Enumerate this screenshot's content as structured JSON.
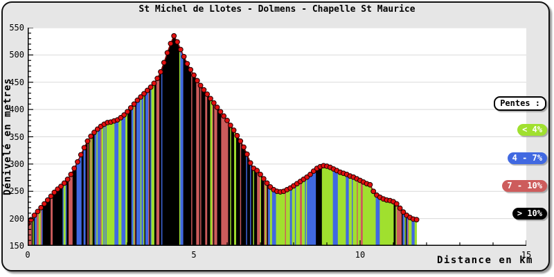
{
  "chart_data": {
    "type": "area",
    "title": "St Michel de Llotes - Dolmens - Chapelle St Maurice",
    "xlabel": "Distance en km",
    "ylabel": "Dénivelé en metres",
    "xlim": [
      0,
      15
    ],
    "ylim": [
      150,
      550
    ],
    "xticks": [
      0,
      5,
      10,
      15
    ],
    "x_minor_step": 1,
    "yticks": [
      150,
      200,
      250,
      300,
      350,
      400,
      450,
      500,
      550
    ],
    "y_minor_step": 10,
    "grid": "horizontal",
    "colors": {
      "background": "#E6E6E6",
      "plot_background": "#FFFFFF",
      "grid": "#D9D9D9",
      "axis": "#000000"
    },
    "legend": {
      "title": "Pentes :",
      "position": "right",
      "entries": [
        {
          "name": "slope-lt-4",
          "label": "< 4%",
          "color": "#A0E02F"
        },
        {
          "name": "slope-4-7",
          "label": "4 - 7%",
          "color": "#4169E1"
        },
        {
          "name": "slope-7-10",
          "label": "7 - 10%",
          "color": "#CD5C5C"
        },
        {
          "name": "slope-gt-10",
          "label": "> 10%",
          "color": "#000000"
        }
      ]
    },
    "slope_bins_pct": [
      4,
      7,
      10
    ],
    "series": [
      {
        "name": "elevation-profile",
        "marker_color": "#E31010",
        "marker_edge_color": "#1A0000",
        "line_color": "#8B0000",
        "x": [
          0.0,
          0.1,
          0.2,
          0.3,
          0.4,
          0.5,
          0.6,
          0.7,
          0.8,
          0.9,
          1.0,
          1.1,
          1.2,
          1.3,
          1.4,
          1.5,
          1.6,
          1.7,
          1.8,
          1.9,
          2.0,
          2.1,
          2.2,
          2.3,
          2.4,
          2.5,
          2.6,
          2.7,
          2.8,
          2.9,
          3.0,
          3.1,
          3.2,
          3.3,
          3.4,
          3.5,
          3.6,
          3.7,
          3.8,
          3.9,
          4.0,
          4.1,
          4.2,
          4.3,
          4.4,
          4.5,
          4.6,
          4.7,
          4.8,
          4.9,
          5.0,
          5.1,
          5.2,
          5.3,
          5.4,
          5.5,
          5.6,
          5.7,
          5.8,
          5.9,
          6.0,
          6.1,
          6.2,
          6.3,
          6.4,
          6.5,
          6.6,
          6.7,
          6.8,
          6.9,
          7.0,
          7.1,
          7.2,
          7.3,
          7.4,
          7.5,
          7.6,
          7.7,
          7.8,
          7.9,
          8.0,
          8.1,
          8.2,
          8.3,
          8.4,
          8.5,
          8.6,
          8.7,
          8.8,
          8.9,
          9.0,
          9.1,
          9.2,
          9.3,
          9.4,
          9.5,
          9.6,
          9.7,
          9.8,
          9.9,
          10.0,
          10.1,
          10.2,
          10.3,
          10.4,
          10.5,
          10.6,
          10.7,
          10.8,
          10.9,
          11.0,
          11.1,
          11.2,
          11.3,
          11.4,
          11.5,
          11.6,
          11.7
        ],
        "y": [
          191,
          198,
          206,
          213,
          220,
          227,
          234,
          241,
          248,
          254,
          259,
          265,
          272,
          281,
          292,
          304,
          317,
          330,
          342,
          351,
          358,
          364,
          369,
          373,
          376,
          377,
          379,
          381,
          385,
          390,
          396,
          403,
          410,
          417,
          423,
          429,
          435,
          441,
          448,
          457,
          469,
          486,
          504,
          521,
          535,
          524,
          510,
          497,
          484,
          473,
          463,
          453,
          444,
          436,
          428,
          420,
          412,
          404,
          396,
          388,
          380,
          371,
          362,
          352,
          342,
          331,
          318,
          302,
          292,
          288,
          281,
          273,
          265,
          258,
          253,
          250,
          249,
          250,
          253,
          256,
          260,
          264,
          268,
          272,
          276,
          281,
          287,
          292,
          295,
          297,
          296,
          294,
          291,
          288,
          285,
          283,
          281,
          278,
          276,
          273,
          270,
          267,
          264,
          262,
          250,
          243,
          239,
          236,
          234,
          233,
          231,
          227,
          219,
          212,
          206,
          202,
          199,
          198
        ]
      }
    ]
  }
}
